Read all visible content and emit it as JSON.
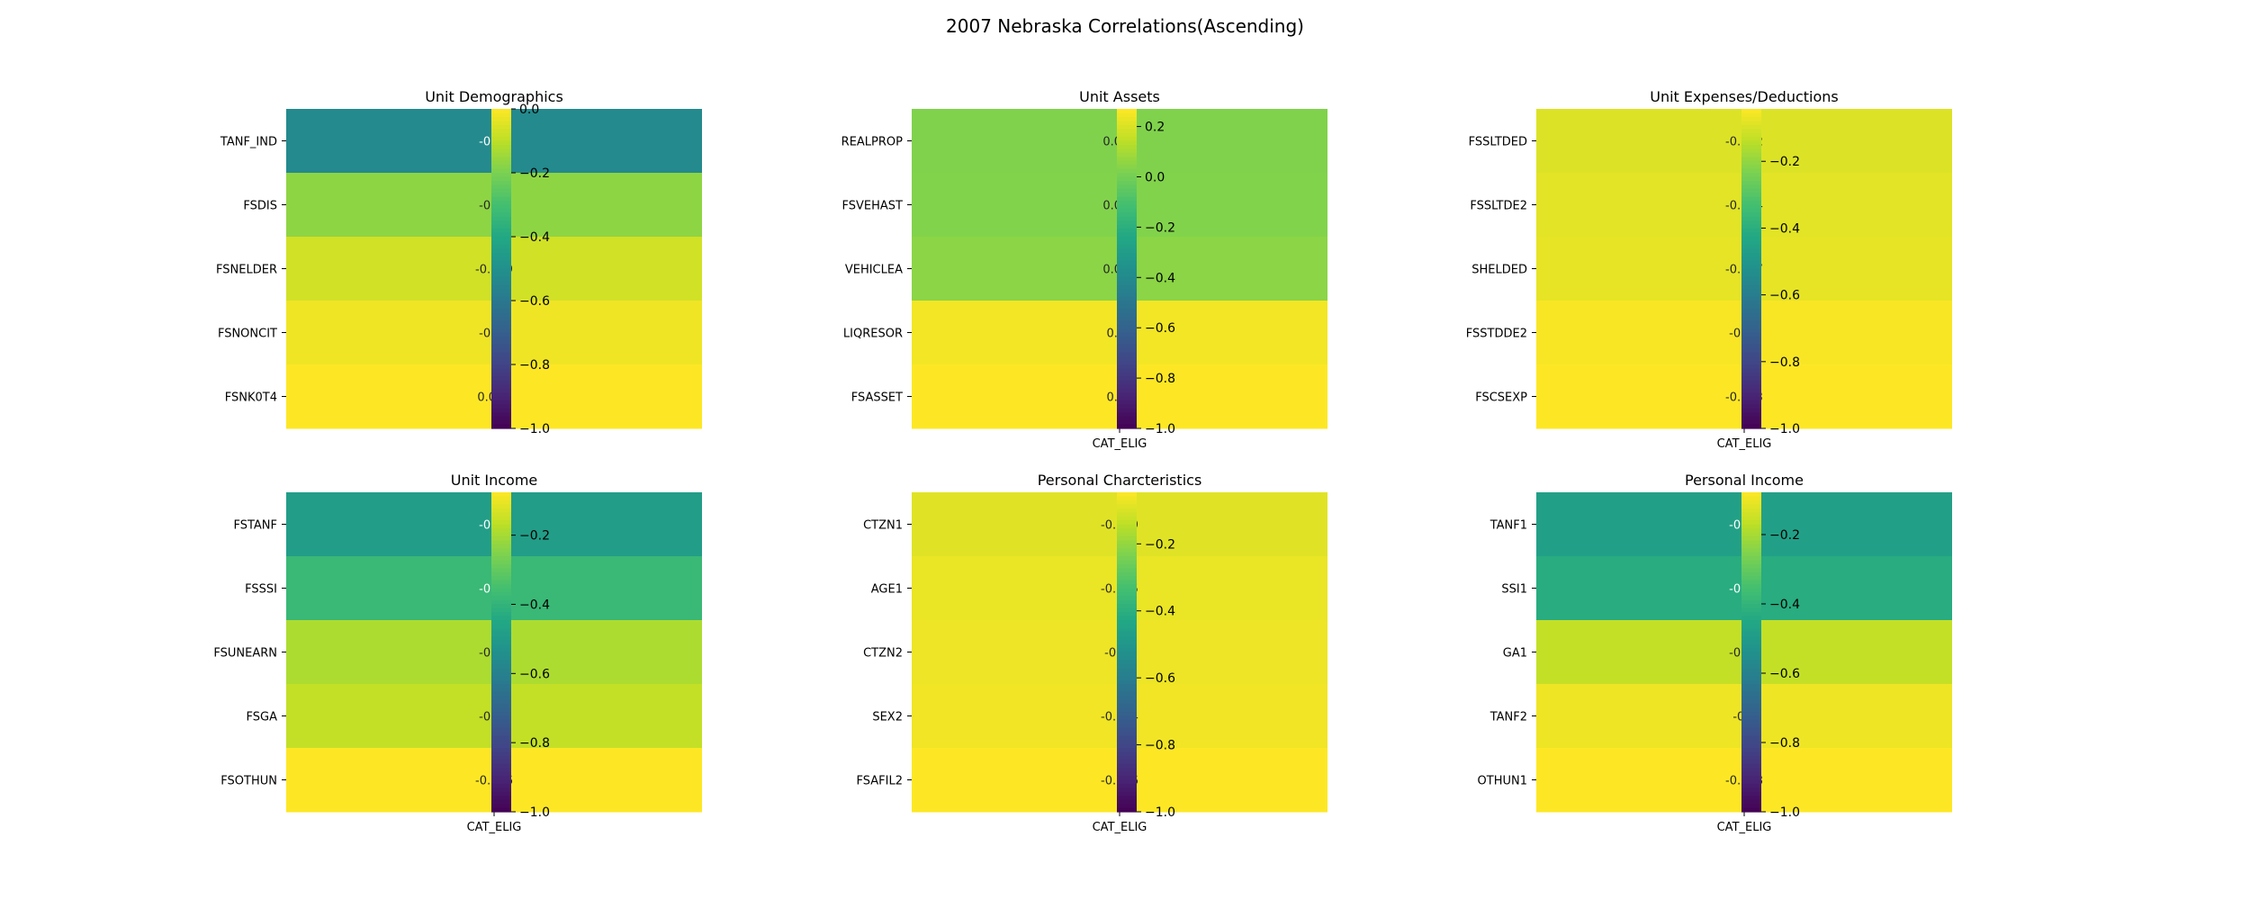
{
  "figure": {
    "title": "2007 Nebraska Correlations(Ascending)"
  },
  "chart_data": [
    {
      "type": "heatmap",
      "title": "Unit Demographics",
      "rows": [
        "TANF_IND",
        "FSDIS",
        "FSNELDER",
        "FSNONCIT",
        "FSNK0T4"
      ],
      "columns": [],
      "values": [
        -0.53,
        -0.17,
        -0.069,
        -0.02,
        0.004
      ],
      "labels": [
        "-0.53",
        "-0.17",
        "-0.069",
        "-0.02",
        "0.004"
      ],
      "colorbar": {
        "range": [
          -1.0,
          0.0
        ],
        "ticks": [
          0.0,
          -0.2,
          -0.4,
          -0.6,
          -0.8,
          -1.0
        ],
        "tick_labels": [
          "0.0",
          "−0.2",
          "−0.4",
          "−0.6",
          "−0.8",
          "−1.0"
        ]
      },
      "colormap": "viridis"
    },
    {
      "type": "heatmap",
      "title": "Unit Assets",
      "rows": [
        "REALPROP",
        "FSVEHAST",
        "VEHICLEA",
        "LIQRESOR",
        "FSASSET"
      ],
      "columns": [
        "CAT_ELIG"
      ],
      "values": [
        0.027,
        0.031,
        0.048,
        0.25,
        0.27
      ],
      "labels": [
        "0.027",
        "0.031",
        "0.048",
        "0.25",
        "0.27"
      ],
      "colorbar": {
        "range": [
          -1.0,
          0.27
        ],
        "ticks": [
          0.2,
          0.0,
          -0.2,
          -0.4,
          -0.6,
          -0.8,
          -1.0
        ],
        "tick_labels": [
          "0.2",
          "0.0",
          "−0.2",
          "−0.4",
          "−0.6",
          "−0.8",
          "−1.0"
        ]
      },
      "colormap": "viridis"
    },
    {
      "type": "heatmap",
      "title": "Unit Expenses/Deductions",
      "rows": [
        "FSSLTDED",
        "FSSLTDE2",
        "SHELDED",
        "FSSTDDE2",
        "FSCSEXP"
      ],
      "columns": [
        "CAT_ELIG"
      ],
      "values": [
        -0.092,
        -0.084,
        -0.077,
        -0.05,
        -0.043
      ],
      "labels": [
        "-0.092",
        "-0.084",
        "-0.077",
        "-0.05",
        "-0.043"
      ],
      "colorbar": {
        "range": [
          -1.0,
          -0.043
        ],
        "ticks": [
          -0.2,
          -0.4,
          -0.6,
          -0.8,
          -1.0
        ],
        "tick_labels": [
          "−0.2",
          "−0.4",
          "−0.6",
          "−0.8",
          "−1.0"
        ]
      },
      "colormap": "viridis"
    },
    {
      "type": "heatmap",
      "title": "Unit Income",
      "rows": [
        "FSTANF",
        "FSSSI",
        "FSUNEARN",
        "FSGA",
        "FSOTHUN"
      ],
      "columns": [
        "CAT_ELIG"
      ],
      "values": [
        -0.49,
        -0.38,
        -0.19,
        -0.16,
        -0.076
      ],
      "labels": [
        "-0.49",
        "-0.38",
        "-0.19",
        "-0.16",
        "-0.076"
      ],
      "colorbar": {
        "range": [
          -1.0,
          -0.076
        ],
        "ticks": [
          -0.2,
          -0.4,
          -0.6,
          -0.8,
          -1.0
        ],
        "tick_labels": [
          "−0.2",
          "−0.4",
          "−0.6",
          "−0.8",
          "−1.0"
        ]
      },
      "colormap": "viridis"
    },
    {
      "type": "heatmap",
      "title": "Personal Charcteristics",
      "rows": [
        "CTZN1",
        "AGE1",
        "CTZN2",
        "SEX2",
        "FSAFIL2"
      ],
      "columns": [
        "CAT_ELIG"
      ],
      "values": [
        -0.089,
        -0.075,
        -0.07,
        -0.064,
        -0.046
      ],
      "labels": [
        "-0.089",
        "-0.075",
        "-0.07",
        "-0.064",
        "-0.046"
      ],
      "colorbar": {
        "range": [
          -1.0,
          -0.046
        ],
        "ticks": [
          -0.2,
          -0.4,
          -0.6,
          -0.8,
          -1.0
        ],
        "tick_labels": [
          "−0.2",
          "−0.4",
          "−0.6",
          "−0.8",
          "−1.0"
        ]
      },
      "colormap": "viridis"
    },
    {
      "type": "heatmap",
      "title": "Personal Income",
      "rows": [
        "TANF1",
        "SSI1",
        "GA1",
        "TANF2",
        "OTHUN1"
      ],
      "columns": [
        "CAT_ELIG"
      ],
      "values": [
        -0.48,
        -0.43,
        -0.16,
        -0.1,
        -0.078
      ],
      "labels": [
        "-0.48",
        "-0.43",
        "-0.16",
        "-0.1",
        "-0.078"
      ],
      "colorbar": {
        "range": [
          -1.0,
          -0.078
        ],
        "ticks": [
          -0.2,
          -0.4,
          -0.6,
          -0.8,
          -1.0
        ],
        "tick_labels": [
          "−0.2",
          "−0.4",
          "−0.6",
          "−0.8",
          "−1.0"
        ]
      },
      "colormap": "viridis"
    }
  ]
}
